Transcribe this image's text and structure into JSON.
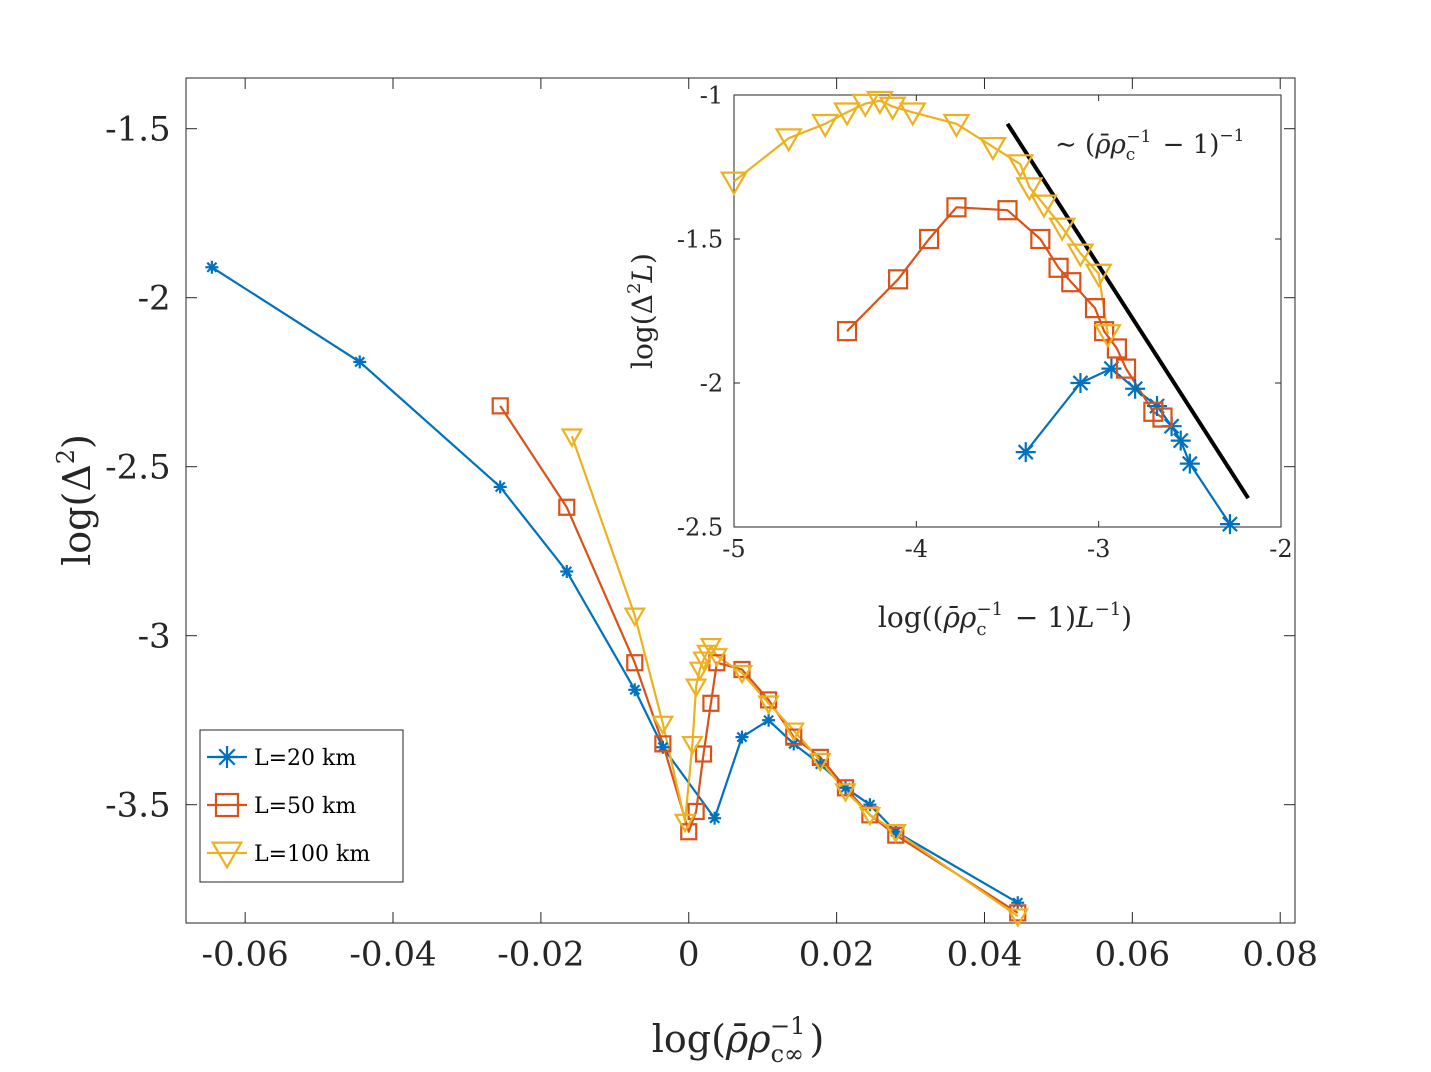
{
  "chart_data": [
    {
      "type": "line",
      "name": "main",
      "xlabel": "log(ρ̄ρc∞⁻¹)",
      "ylabel": "log(Δ²)",
      "xlim": [
        -0.068,
        0.082
      ],
      "ylim": [
        -3.85,
        -1.35
      ],
      "xticks": [
        -0.06,
        -0.04,
        -0.02,
        0,
        0.02,
        0.04,
        0.06,
        0.08
      ],
      "xtick_labels": [
        "-0.06",
        "-0.04",
        "-0.02",
        "0",
        "0.02",
        "0.04",
        "0.06",
        "0.08"
      ],
      "yticks": [
        -1.5,
        -2,
        -2.5,
        -3,
        -3.5
      ],
      "ytick_labels": [
        "-1.5",
        "-2",
        "-2.5",
        "-3",
        "-3.5"
      ],
      "legend_position": "bottom-left",
      "series": [
        {
          "name": "L=20 km",
          "legend_label": "L=20 km",
          "color": "#0072BD",
          "marker": "asterisk",
          "x": [
            -0.0645,
            -0.0445,
            -0.0255,
            -0.0165,
            -0.0073,
            -0.0035,
            0.0035,
            0.0072,
            0.0108,
            0.0142,
            0.0178,
            0.0212,
            0.0245,
            0.028,
            0.0445
          ],
          "y": [
            -1.91,
            -2.19,
            -2.56,
            -2.81,
            -3.16,
            -3.33,
            -3.54,
            -3.3,
            -3.25,
            -3.32,
            -3.38,
            -3.45,
            -3.5,
            -3.58,
            -3.79
          ]
        },
        {
          "name": "L=50 km",
          "legend_label": "L=50 km",
          "color": "#D95319",
          "marker": "square",
          "x": [
            -0.0255,
            -0.0165,
            -0.0073,
            -0.0035,
            0.0,
            0.001,
            0.002,
            0.003,
            0.0038,
            0.0072,
            0.0108,
            0.0142,
            0.0178,
            0.0212,
            0.0245,
            0.028,
            0.0445
          ],
          "y": [
            -2.32,
            -2.62,
            -3.08,
            -3.32,
            -3.58,
            -3.52,
            -3.35,
            -3.2,
            -3.08,
            -3.1,
            -3.19,
            -3.3,
            -3.36,
            -3.45,
            -3.53,
            -3.59,
            -3.82
          ]
        },
        {
          "name": "L=100 km",
          "legend_label": "L=100 km",
          "color": "#EDB120",
          "marker": "triangle-down",
          "x": [
            -0.0158,
            -0.0073,
            -0.0035,
            -0.0005,
            0.0005,
            0.001,
            0.0015,
            0.002,
            0.0025,
            0.003,
            0.0038,
            0.0072,
            0.0108,
            0.0142,
            0.0178,
            0.0212,
            0.0245,
            0.028,
            0.0445
          ],
          "y": [
            -2.41,
            -2.94,
            -3.26,
            -3.55,
            -3.32,
            -3.15,
            -3.1,
            -3.07,
            -3.05,
            -3.03,
            -3.06,
            -3.11,
            -3.2,
            -3.28,
            -3.37,
            -3.46,
            -3.53,
            -3.58,
            -3.83
          ]
        }
      ]
    },
    {
      "type": "line",
      "name": "inset",
      "xlabel": "log((ρ̄ρc⁻¹ − 1)L⁻¹)",
      "ylabel": "log(Δ²L)",
      "xlim": [
        -5,
        -2
      ],
      "ylim": [
        -2.5,
        -1
      ],
      "xticks": [
        -5,
        -4,
        -3,
        -2
      ],
      "xtick_labels": [
        "-5",
        "-4",
        "-3",
        "-2"
      ],
      "yticks": [
        -1,
        -1.5,
        -2,
        -2.5
      ],
      "ytick_labels": [
        "-1",
        "-1.5",
        "-2",
        "-2.5"
      ],
      "annotation": "∼ (ρ̄ρc⁻¹ − 1)⁻¹",
      "reference_line": {
        "label": "∼ (ρ̄ρc⁻¹ − 1)⁻¹",
        "color": "#000000",
        "x": [
          -3.5,
          -2.18
        ],
        "y": [
          -1.1,
          -2.4
        ]
      },
      "series": [
        {
          "name": "L=20 km",
          "color": "#0072BD",
          "marker": "asterisk",
          "x": [
            -3.4,
            -3.1,
            -2.93,
            -2.8,
            -2.68,
            -2.6,
            -2.55,
            -2.5,
            -2.28
          ],
          "y": [
            -2.24,
            -2.0,
            -1.95,
            -2.02,
            -2.08,
            -2.15,
            -2.2,
            -2.28,
            -2.49
          ]
        },
        {
          "name": "L=50 km",
          "color": "#D95319",
          "marker": "square",
          "x": [
            -4.38,
            -4.1,
            -3.93,
            -3.78,
            -3.5,
            -3.32,
            -3.22,
            -3.15,
            -3.02,
            -2.97,
            -2.9,
            -2.85,
            -2.7,
            -2.65
          ],
          "y": [
            -1.82,
            -1.64,
            -1.5,
            -1.39,
            -1.4,
            -1.5,
            -1.6,
            -1.65,
            -1.74,
            -1.82,
            -1.88,
            -1.95,
            -2.1,
            -2.12
          ]
        },
        {
          "name": "L=100 km",
          "color": "#EDB120",
          "marker": "triangle-down",
          "x": [
            -5.0,
            -4.7,
            -4.5,
            -4.38,
            -4.28,
            -4.2,
            -4.13,
            -4.02,
            -3.78,
            -3.58,
            -3.43,
            -3.38,
            -3.3,
            -3.2,
            -3.1,
            -3.0,
            -2.95
          ],
          "y": [
            -1.3,
            -1.15,
            -1.1,
            -1.06,
            -1.03,
            -1.02,
            -1.04,
            -1.06,
            -1.1,
            -1.18,
            -1.24,
            -1.32,
            -1.38,
            -1.46,
            -1.55,
            -1.62,
            -1.83
          ]
        }
      ]
    }
  ]
}
